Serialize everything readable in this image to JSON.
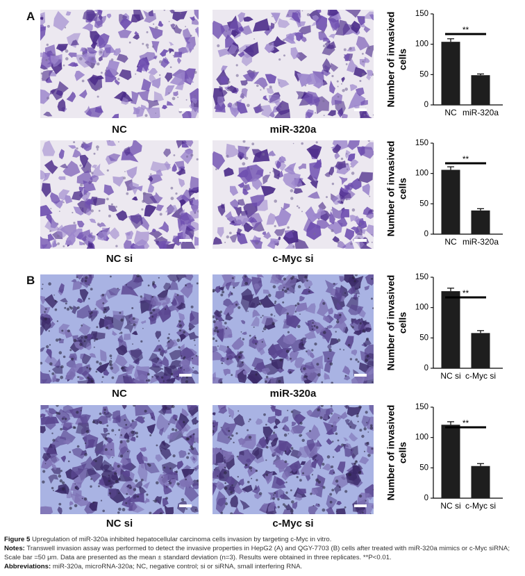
{
  "panels": [
    {
      "letter": "A",
      "rows": [
        {
          "images": [
            {
              "label": "NC"
            },
            {
              "label": "miR-320a"
            }
          ],
          "chart": {
            "type": "bar",
            "ylabel": "Number of invasived cells",
            "categories": [
              "NC",
              "miR-320a"
            ],
            "values": [
              104,
              49
            ],
            "errors": [
              5,
              2
            ],
            "ylim": [
              0,
              150
            ],
            "yticks": [
              0,
              50,
              100,
              150
            ],
            "significance": "**"
          }
        },
        {
          "images": [
            {
              "label": "NC si"
            },
            {
              "label": "c-Myc si"
            }
          ],
          "chart": {
            "type": "bar",
            "ylabel": "Number of invasived cells",
            "categories": [
              "NC",
              "miR-320a"
            ],
            "values": [
              106,
              39
            ],
            "errors": [
              5,
              3
            ],
            "ylim": [
              0,
              150
            ],
            "yticks": [
              0,
              50,
              100,
              150
            ],
            "significance": "**"
          }
        }
      ]
    },
    {
      "letter": "B",
      "rows": [
        {
          "images": [
            {
              "label": "NC"
            },
            {
              "label": "miR-320a"
            }
          ],
          "chart": {
            "type": "bar",
            "ylabel": "Number of invasived cells",
            "categories": [
              "NC si",
              "c-Myc si"
            ],
            "values": [
              127,
              58
            ],
            "errors": [
              5,
              4
            ],
            "ylim": [
              0,
              150
            ],
            "yticks": [
              0,
              50,
              100,
              150
            ],
            "significance": "**"
          }
        },
        {
          "images": [
            {
              "label": "NC si"
            },
            {
              "label": "c-Myc si"
            }
          ],
          "chart": {
            "type": "bar",
            "ylabel": "Number of invasived cells",
            "categories": [
              "NC si",
              "c-Myc si"
            ],
            "values": [
              121,
              53
            ],
            "errors": [
              5,
              4
            ],
            "ylim": [
              0,
              150
            ],
            "yticks": [
              0,
              50,
              100,
              150
            ],
            "significance": "**"
          }
        }
      ]
    }
  ],
  "chart_data": [
    {
      "type": "bar",
      "ylabel": "Number of invasived cells",
      "categories": [
        "NC",
        "miR-320a"
      ],
      "values": [
        104,
        49
      ],
      "ylim": [
        0,
        150
      ],
      "annotation": "**"
    },
    {
      "type": "bar",
      "ylabel": "Number of invasived cells",
      "categories": [
        "NC",
        "miR-320a"
      ],
      "values": [
        106,
        39
      ],
      "ylim": [
        0,
        150
      ],
      "annotation": "**"
    },
    {
      "type": "bar",
      "ylabel": "Number of invasived cells",
      "categories": [
        "NC si",
        "c-Myc si"
      ],
      "values": [
        127,
        58
      ],
      "ylim": [
        0,
        150
      ],
      "annotation": "**"
    },
    {
      "type": "bar",
      "ylabel": "Number of invasived cells",
      "categories": [
        "NC si",
        "c-Myc si"
      ],
      "values": [
        121,
        53
      ],
      "ylim": [
        0,
        150
      ],
      "annotation": "**"
    }
  ],
  "caption": {
    "figure_label": "Figure 5",
    "figure_title": " Upregulation of miR-320a inhibited hepatocellular carcinoma cells invasion by targeting c-Myc in vitro.",
    "notes_label": "Notes:",
    "notes_text": " Transwell invasion assay was performed to detect the invasive properties in HepG2 (A) and QGY-7703 (B) cells after treated with miR-320a mimics or c-Myc siRNA; Scale bar =50 μm. Data are presented as the mean ± standard deviation (n=3). Results were obtained in three replicates. **P<0.01.",
    "abbrev_label": "Abbreviations:",
    "abbrev_text": " miR-320a, microRNA-320a; NC, negative control; si or siRNA, small interfering RNA."
  }
}
